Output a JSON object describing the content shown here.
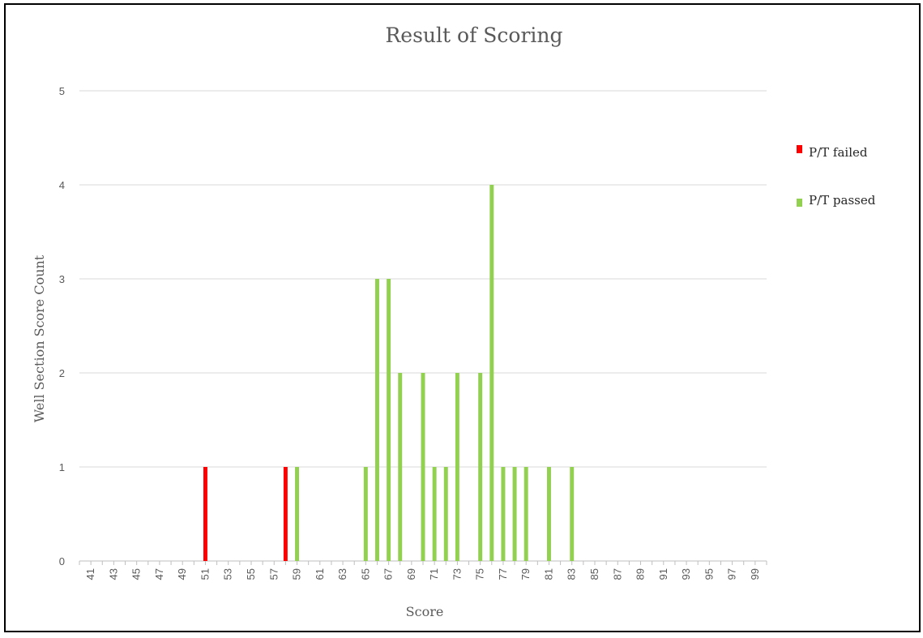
{
  "chart_data": {
    "type": "bar",
    "title": "Result of Scoring",
    "xlabel": "Score",
    "ylabel": "Well Section Score Count",
    "ylim": [
      0,
      5
    ],
    "yticks": [
      0,
      1,
      2,
      3,
      4,
      5
    ],
    "x_range": [
      40,
      100
    ],
    "x_tick_labels": [
      "41",
      "43",
      "45",
      "47",
      "49",
      "51",
      "53",
      "55",
      "57",
      "59",
      "61",
      "63",
      "65",
      "67",
      "69",
      "71",
      "73",
      "75",
      "77",
      "79",
      "81",
      "83",
      "85",
      "87",
      "89",
      "91",
      "93",
      "95",
      "97",
      "99"
    ],
    "grid": "horizontal",
    "legend_position": "right",
    "series": [
      {
        "name": "P/T failed",
        "color": "#ff0000",
        "points": [
          {
            "x": 51,
            "y": 1
          },
          {
            "x": 58,
            "y": 1
          }
        ]
      },
      {
        "name": "P/T passed",
        "color": "#92d050",
        "points": [
          {
            "x": 59,
            "y": 1
          },
          {
            "x": 65,
            "y": 1
          },
          {
            "x": 66,
            "y": 3
          },
          {
            "x": 67,
            "y": 3
          },
          {
            "x": 68,
            "y": 2
          },
          {
            "x": 70,
            "y": 2
          },
          {
            "x": 71,
            "y": 1
          },
          {
            "x": 72,
            "y": 1
          },
          {
            "x": 73,
            "y": 2
          },
          {
            "x": 75,
            "y": 2
          },
          {
            "x": 76,
            "y": 4
          },
          {
            "x": 77,
            "y": 1
          },
          {
            "x": 78,
            "y": 1
          },
          {
            "x": 79,
            "y": 1
          },
          {
            "x": 81,
            "y": 1
          },
          {
            "x": 83,
            "y": 1
          }
        ]
      }
    ]
  }
}
